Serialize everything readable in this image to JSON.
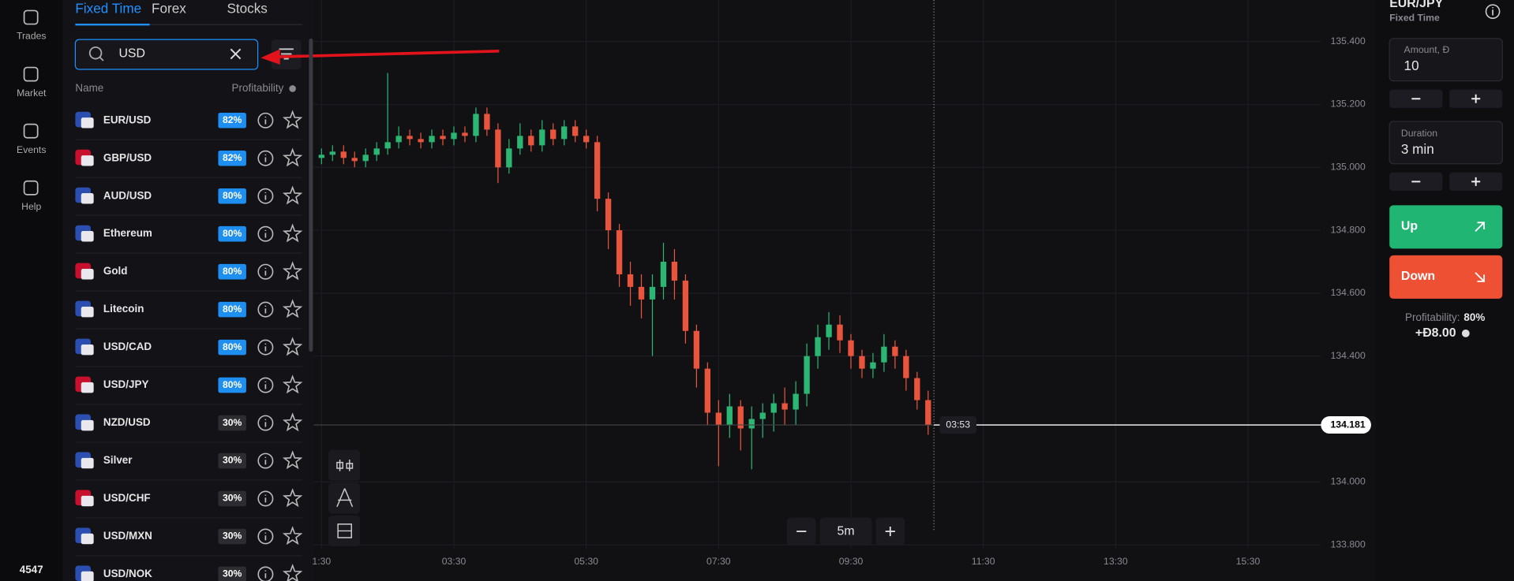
{
  "nav": {
    "items": [
      "Trades",
      "Market",
      "Events",
      "Help"
    ],
    "footer": "4547"
  },
  "panel": {
    "tabs": [
      "Fixed Time",
      "Forex",
      "Stocks"
    ],
    "search": "USD",
    "columns": [
      "Name",
      "Profitability"
    ],
    "assets": [
      {
        "name": "EUR/USD",
        "profitability": "82%"
      },
      {
        "name": "GBP/USD",
        "profitability": "82%"
      },
      {
        "name": "AUD/USD",
        "profitability": "80%"
      },
      {
        "name": "Ethereum",
        "profitability": "80%"
      },
      {
        "name": "Gold",
        "profitability": "80%"
      },
      {
        "name": "Litecoin",
        "profitability": "80%"
      },
      {
        "name": "USD/CAD",
        "profitability": "80%"
      },
      {
        "name": "USD/JPY",
        "profitability": "80%"
      },
      {
        "name": "NZD/USD",
        "profitability": "30%"
      },
      {
        "name": "Silver",
        "profitability": "30%"
      },
      {
        "name": "USD/CHF",
        "profitability": "30%"
      },
      {
        "name": "USD/MXN",
        "profitability": "30%"
      },
      {
        "name": "USD/NOK",
        "profitability": "30%"
      }
    ]
  },
  "chart_data": {
    "type": "candlestick",
    "up_color": "#2bb673",
    "down_color": "#e9553c",
    "x": [
      90,
      100,
      110,
      120,
      130,
      140,
      150,
      160,
      170,
      180,
      190,
      200,
      210,
      220,
      230,
      240,
      250,
      260,
      270,
      280,
      290,
      300,
      310,
      320,
      330,
      340,
      350,
      360,
      370,
      380,
      390,
      400,
      410,
      420,
      430,
      440,
      450,
      460,
      470,
      480,
      490,
      500,
      510,
      520,
      530,
      540,
      550,
      560,
      570,
      580,
      590,
      600,
      610,
      620,
      630,
      640
    ],
    "open": [
      135.03,
      135.04,
      135.05,
      135.03,
      135.02,
      135.04,
      135.06,
      135.08,
      135.1,
      135.09,
      135.08,
      135.1,
      135.09,
      135.11,
      135.1,
      135.17,
      135.12,
      135.0,
      135.06,
      135.1,
      135.07,
      135.12,
      135.09,
      135.13,
      135.1,
      135.08,
      134.9,
      134.8,
      134.66,
      134.62,
      134.58,
      134.62,
      134.7,
      134.64,
      134.48,
      134.36,
      134.22,
      134.18,
      134.24,
      134.17,
      134.2,
      134.22,
      134.25,
      134.23,
      134.28,
      134.4,
      134.46,
      134.5,
      134.45,
      134.4,
      134.36,
      134.38,
      134.43,
      134.4,
      134.33,
      134.26
    ],
    "high": [
      135.06,
      135.07,
      135.07,
      135.05,
      135.06,
      135.08,
      135.3,
      135.13,
      135.12,
      135.11,
      135.12,
      135.12,
      135.13,
      135.13,
      135.19,
      135.19,
      135.14,
      135.09,
      135.14,
      135.12,
      135.15,
      135.14,
      135.15,
      135.15,
      135.12,
      135.1,
      134.92,
      134.82,
      134.7,
      134.66,
      134.66,
      134.76,
      134.74,
      134.66,
      134.5,
      134.38,
      134.26,
      134.28,
      134.26,
      134.24,
      134.25,
      134.28,
      134.3,
      134.32,
      134.44,
      134.5,
      134.54,
      134.53,
      134.47,
      134.42,
      134.41,
      134.47,
      134.45,
      134.42,
      134.35,
      134.29
    ],
    "low": [
      135.01,
      135.02,
      135.01,
      135.0,
      135.0,
      135.02,
      135.04,
      135.06,
      135.07,
      135.06,
      135.06,
      135.07,
      135.07,
      135.08,
      135.08,
      135.1,
      134.95,
      134.98,
      135.04,
      135.05,
      135.05,
      135.07,
      135.07,
      135.08,
      135.06,
      134.86,
      134.74,
      134.62,
      134.56,
      134.52,
      134.4,
      134.58,
      134.58,
      134.44,
      134.3,
      134.18,
      134.05,
      134.14,
      134.1,
      134.04,
      134.14,
      134.16,
      134.18,
      134.18,
      134.24,
      134.36,
      134.42,
      134.41,
      134.36,
      134.33,
      134.33,
      134.35,
      134.36,
      134.29,
      134.23,
      134.15
    ],
    "close": [
      135.04,
      135.05,
      135.03,
      135.02,
      135.04,
      135.06,
      135.08,
      135.1,
      135.09,
      135.08,
      135.1,
      135.09,
      135.11,
      135.1,
      135.17,
      135.12,
      135.0,
      135.06,
      135.1,
      135.07,
      135.12,
      135.09,
      135.13,
      135.1,
      135.08,
      134.9,
      134.8,
      134.66,
      134.62,
      134.58,
      134.62,
      134.7,
      134.64,
      134.48,
      134.36,
      134.22,
      134.18,
      134.24,
      134.17,
      134.2,
      134.22,
      134.25,
      134.23,
      134.28,
      134.4,
      134.46,
      134.5,
      134.45,
      134.4,
      134.36,
      134.38,
      134.43,
      134.4,
      134.33,
      134.26,
      134.18
    ],
    "ylim": [
      133.786,
      135.532
    ],
    "yticks": [
      {
        "value": 135.4,
        "label": "135.400"
      },
      {
        "value": 135.2,
        "label": "135.200"
      },
      {
        "value": 135.0,
        "label": "135.000"
      },
      {
        "value": 134.8,
        "label": "134.800"
      },
      {
        "value": 134.6,
        "label": "134.600"
      },
      {
        "value": 134.4,
        "label": "134.400"
      },
      {
        "value": 134.0,
        "label": "134.000"
      },
      {
        "value": 133.8,
        "label": "133.800"
      }
    ],
    "xlim": [
      83,
      1046
    ],
    "xticks": [
      {
        "value": 90,
        "label": "1:30"
      },
      {
        "value": 210,
        "label": "03:30"
      },
      {
        "value": 330,
        "label": "05:30"
      },
      {
        "value": 450,
        "label": "07:30"
      },
      {
        "value": 570,
        "label": "09:30"
      },
      {
        "value": 690,
        "label": "11:30"
      },
      {
        "value": 810,
        "label": "13:30"
      },
      {
        "value": 930,
        "label": "15:30"
      }
    ],
    "grid": true,
    "current_price": 134.181,
    "countdown": "03:53",
    "timeframe": "5m"
  },
  "trade": {
    "asset": "EUR/JPY",
    "mode": "Fixed Time",
    "amount_label": "Amount, Đ",
    "amount": "10",
    "duration_label": "Duration",
    "duration": "3 min",
    "up": "Up",
    "down": "Down",
    "profitability_label": "Profitability:",
    "profitability": "80%",
    "payout": "+Đ8.00"
  }
}
